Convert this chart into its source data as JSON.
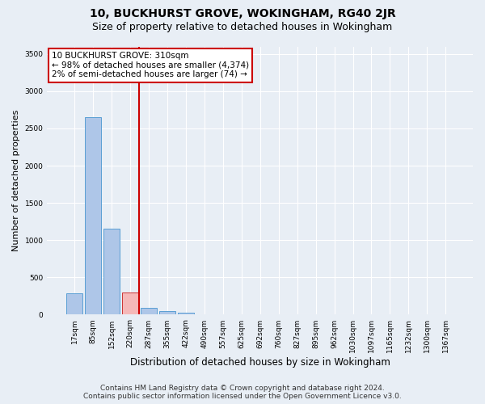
{
  "title": "10, BUCKHURST GROVE, WOKINGHAM, RG40 2JR",
  "subtitle": "Size of property relative to detached houses in Wokingham",
  "xlabel": "Distribution of detached houses by size in Wokingham",
  "ylabel": "Number of detached properties",
  "bar_labels": [
    "17sqm",
    "85sqm",
    "152sqm",
    "220sqm",
    "287sqm",
    "355sqm",
    "422sqm",
    "490sqm",
    "557sqm",
    "625sqm",
    "692sqm",
    "760sqm",
    "827sqm",
    "895sqm",
    "962sqm",
    "1030sqm",
    "1097sqm",
    "1165sqm",
    "1232sqm",
    "1300sqm",
    "1367sqm"
  ],
  "bar_values": [
    290,
    2650,
    1150,
    295,
    95,
    45,
    30,
    0,
    0,
    0,
    0,
    0,
    0,
    0,
    0,
    0,
    0,
    0,
    0,
    0,
    0
  ],
  "bar_color": "#aec6e8",
  "bar_edge_color": "#5a9fd4",
  "highlight_bar_index": 3,
  "highlight_bar_color": "#f5b8b8",
  "highlight_bar_edge_color": "#cc3333",
  "vline_x": 3.5,
  "vline_color": "#cc0000",
  "annotation_text": "10 BUCKHURST GROVE: 310sqm\n← 98% of detached houses are smaller (4,374)\n2% of semi-detached houses are larger (74) →",
  "annotation_box_color": "#ffffff",
  "annotation_box_edge_color": "#cc0000",
  "ylim": [
    0,
    3600
  ],
  "yticks": [
    0,
    500,
    1000,
    1500,
    2000,
    2500,
    3000,
    3500
  ],
  "bg_color": "#e8eef5",
  "plot_bg_color": "#e8eef5",
  "grid_color": "#ffffff",
  "footer_line1": "Contains HM Land Registry data © Crown copyright and database right 2024.",
  "footer_line2": "Contains public sector information licensed under the Open Government Licence v3.0.",
  "title_fontsize": 10,
  "subtitle_fontsize": 9,
  "ylabel_fontsize": 8,
  "xlabel_fontsize": 8.5,
  "tick_fontsize": 6.5,
  "annotation_fontsize": 7.5,
  "footer_fontsize": 6.5
}
